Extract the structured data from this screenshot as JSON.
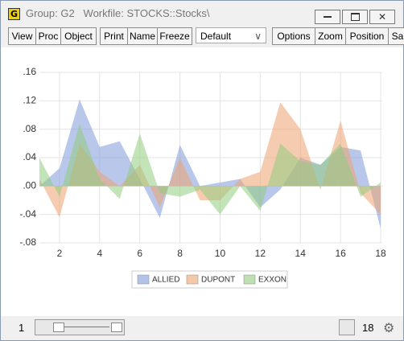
{
  "window": {
    "icon": "G",
    "title": "Group: G2   Workfile: STOCKS::Stocks\\"
  },
  "toolbar": {
    "buttons": [
      "View",
      "Proc",
      "Object",
      "Print",
      "Name",
      "Freeze",
      "Options",
      "Zoom",
      "Position",
      "Sa"
    ],
    "dropdown": "Default"
  },
  "status": {
    "start": "1",
    "end": "18"
  },
  "chart_data": {
    "type": "area",
    "x": [
      1,
      2,
      3,
      4,
      5,
      6,
      7,
      8,
      9,
      10,
      11,
      12,
      13,
      14,
      15,
      16,
      17,
      18
    ],
    "series": [
      {
        "name": "ALLIED",
        "color": "#7f9ad8",
        "values": [
          0.0,
          0.025,
          0.122,
          0.055,
          0.063,
          0.01,
          -0.045,
          0.058,
          0.0,
          0.005,
          0.01,
          -0.03,
          -0.005,
          0.04,
          0.03,
          0.055,
          0.05,
          -0.06
        ]
      },
      {
        "name": "DUPONT",
        "color": "#eea36f",
        "values": [
          0.01,
          -0.044,
          0.06,
          0.02,
          0.0,
          0.03,
          -0.03,
          0.04,
          -0.02,
          -0.02,
          0.01,
          0.02,
          0.118,
          0.08,
          -0.005,
          0.092,
          -0.01,
          -0.04
        ]
      },
      {
        "name": "EXXON",
        "color": "#92cc80",
        "values": [
          0.04,
          -0.015,
          0.088,
          0.01,
          -0.018,
          0.074,
          -0.01,
          -0.015,
          -0.005,
          -0.04,
          0.0,
          -0.035,
          0.06,
          0.035,
          0.03,
          0.06,
          -0.015,
          0.005
        ]
      }
    ],
    "xlim": [
      1,
      18
    ],
    "xticks": [
      2,
      4,
      6,
      8,
      10,
      12,
      14,
      16,
      18
    ],
    "ylim": [
      -0.08,
      0.16
    ],
    "yticks": [
      {
        "value": -0.08,
        "label": "-.08"
      },
      {
        "value": -0.04,
        "label": "-.04"
      },
      {
        "value": 0,
        "label": ".00"
      },
      {
        "value": 0.04,
        "label": ".04"
      },
      {
        "value": 0.08,
        "label": ".08"
      },
      {
        "value": 0.12,
        "label": ".12"
      },
      {
        "value": 0.16,
        "label": ".16"
      }
    ],
    "grid": true
  }
}
